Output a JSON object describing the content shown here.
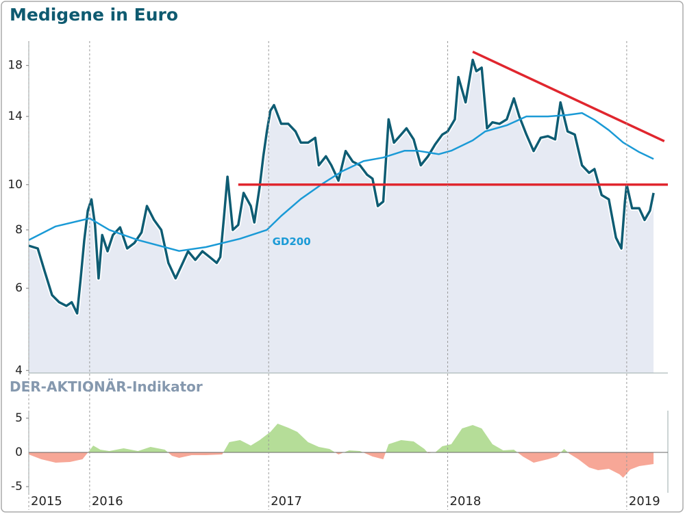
{
  "chart_data": [
    {
      "type": "line",
      "title": "Medigene in Euro",
      "log": true,
      "xlim": [
        2015.66,
        2019.23
      ],
      "ylim": [
        3.95,
        20.3
      ],
      "yticks": [
        4,
        6,
        8,
        10,
        14,
        18
      ],
      "area_color": "#e6eaf3",
      "series": [
        {
          "color": "#0e5c73",
          "x": [
            2015.66,
            2015.71,
            2015.75,
            2015.79,
            2015.83,
            2015.87,
            2015.9,
            2015.93,
            2015.95,
            2015.97,
            2015.99,
            2016.01,
            2016.03,
            2016.05,
            2016.07,
            2016.1,
            2016.13,
            2016.17,
            2016.21,
            2016.25,
            2016.29,
            2016.32,
            2016.36,
            2016.4,
            2016.44,
            2016.48,
            2016.52,
            2016.55,
            2016.59,
            2016.63,
            2016.67,
            2016.71,
            2016.73,
            2016.75,
            2016.77,
            2016.8,
            2016.83,
            2016.86,
            2016.9,
            2016.92,
            2016.95,
            2016.97,
            2016.99,
            2017.01,
            2017.03,
            2017.07,
            2017.11,
            2017.15,
            2017.18,
            2017.22,
            2017.26,
            2017.28,
            2017.32,
            2017.35,
            2017.39,
            2017.43,
            2017.47,
            2017.51,
            2017.55,
            2017.58,
            2017.61,
            2017.64,
            2017.67,
            2017.7,
            2017.74,
            2017.77,
            2017.81,
            2017.85,
            2017.89,
            2017.93,
            2017.97,
            2018.0,
            2018.04,
            2018.06,
            2018.1,
            2018.14,
            2018.16,
            2018.19,
            2018.22,
            2018.25,
            2018.29,
            2018.33,
            2018.37,
            2018.4,
            2018.44,
            2018.48,
            2018.52,
            2018.56,
            2018.6,
            2018.63,
            2018.67,
            2018.71,
            2018.75,
            2018.79,
            2018.82,
            2018.86,
            2018.9,
            2018.94,
            2018.97,
            2018.99,
            2019.0,
            2019.03,
            2019.07,
            2019.1,
            2019.13,
            2019.15
          ],
          "values": [
            7.4,
            7.3,
            6.5,
            5.8,
            5.6,
            5.5,
            5.6,
            5.3,
            6.3,
            7.6,
            8.8,
            9.3,
            8.2,
            6.3,
            7.8,
            7.2,
            7.8,
            8.1,
            7.3,
            7.5,
            7.9,
            9.0,
            8.4,
            8.0,
            6.8,
            6.3,
            6.8,
            7.2,
            6.9,
            7.2,
            7.0,
            6.8,
            7.0,
            8.5,
            10.4,
            8.0,
            8.2,
            9.6,
            9.0,
            8.3,
            9.9,
            11.5,
            13.0,
            14.4,
            14.8,
            13.5,
            13.5,
            13.0,
            12.3,
            12.3,
            12.6,
            11.0,
            11.5,
            11.0,
            10.2,
            11.8,
            11.2,
            11.0,
            10.5,
            10.3,
            9.0,
            9.2,
            13.8,
            12.3,
            12.8,
            13.2,
            12.5,
            11.0,
            11.5,
            12.2,
            12.8,
            13.0,
            13.8,
            17.0,
            15.0,
            18.5,
            17.5,
            17.8,
            13.2,
            13.6,
            13.5,
            13.8,
            15.3,
            14.0,
            12.8,
            11.8,
            12.6,
            12.7,
            12.5,
            15.0,
            13.0,
            12.8,
            11.0,
            10.6,
            10.8,
            9.5,
            9.3,
            7.7,
            7.3,
            9.2,
            10.0,
            8.9,
            8.9,
            8.4,
            8.8,
            9.6
          ]
        },
        {
          "name": "GD200",
          "color": "#1a9ad6",
          "x": [
            2015.66,
            2015.81,
            2016.0,
            2016.11,
            2016.27,
            2016.5,
            2016.65,
            2016.84,
            2016.99,
            2017.07,
            2017.18,
            2017.3,
            2017.41,
            2017.53,
            2017.64,
            2017.76,
            2017.83,
            2017.95,
            2018.02,
            2018.14,
            2018.21,
            2018.33,
            2018.44,
            2018.56,
            2018.67,
            2018.75,
            2018.82,
            2018.9,
            2018.98,
            2019.07,
            2019.15
          ],
          "values": [
            7.61,
            8.14,
            8.47,
            8.0,
            7.61,
            7.21,
            7.35,
            7.66,
            8.0,
            8.57,
            9.32,
            10.04,
            10.68,
            11.23,
            11.43,
            11.82,
            11.82,
            11.62,
            11.82,
            12.44,
            13.0,
            13.4,
            14.0,
            14.0,
            14.1,
            14.24,
            13.76,
            13.08,
            12.31,
            11.74,
            11.35
          ]
        }
      ],
      "lines": [
        {
          "color": "#e0262e",
          "x": [
            2016.83,
            2019.23
          ],
          "values": [
            10,
            10
          ]
        },
        {
          "color": "#e0262e",
          "x": [
            2018.14,
            2019.21
          ],
          "values": [
            19.26,
            12.39
          ]
        }
      ]
    },
    {
      "type": "area",
      "title": "DER-AKTIONÄR-Indikator",
      "xlim": [
        2015.66,
        2019.23
      ],
      "ylim": [
        -5.9,
        6.1
      ],
      "yticks": [
        -5,
        0,
        5
      ],
      "xticks": [
        {
          "value": 2015.66,
          "label": "2015"
        },
        2016,
        2017,
        2018,
        2019
      ],
      "positive_color": "#b5dd98",
      "negative_color": "#f7a797",
      "x": [
        2015.66,
        2015.73,
        2015.81,
        2015.89,
        2015.96,
        2016.0,
        2016.02,
        2016.06,
        2016.11,
        2016.19,
        2016.27,
        2016.34,
        2016.42,
        2016.46,
        2016.5,
        2016.57,
        2016.65,
        2016.74,
        2016.78,
        2016.84,
        2016.9,
        2016.95,
        2017.01,
        2017.05,
        2017.11,
        2017.16,
        2017.22,
        2017.28,
        2017.34,
        2017.39,
        2017.45,
        2017.51,
        2017.58,
        2017.64,
        2017.67,
        2017.74,
        2017.81,
        2017.87,
        2017.89,
        2017.93,
        2017.97,
        2018.02,
        2018.08,
        2018.14,
        2018.19,
        2018.25,
        2018.31,
        2018.37,
        2018.42,
        2018.48,
        2018.56,
        2018.61,
        2018.65,
        2018.68,
        2018.73,
        2018.79,
        2018.84,
        2018.9,
        2018.96,
        2018.98,
        2019.02,
        2019.07,
        2019.15
      ],
      "values": [
        -0.3,
        -1.0,
        -1.5,
        -1.4,
        -1.0,
        0.3,
        1.0,
        0.4,
        0.2,
        0.6,
        0.2,
        0.8,
        0.4,
        -0.5,
        -0.8,
        -0.4,
        -0.4,
        -0.3,
        1.5,
        1.8,
        1.0,
        1.8,
        3.0,
        4.2,
        3.6,
        3.0,
        1.5,
        0.8,
        0.5,
        -0.3,
        0.3,
        0.2,
        -0.6,
        -1.0,
        1.2,
        1.8,
        1.6,
        0.5,
        -0.1,
        0.0,
        0.9,
        1.2,
        3.5,
        4.0,
        3.5,
        1.2,
        0.3,
        0.4,
        -0.6,
        -1.5,
        -1.0,
        -0.6,
        0.5,
        -0.2,
        -1.0,
        -2.2,
        -2.6,
        -2.4,
        -3.2,
        -3.7,
        -2.5,
        -2.0,
        -1.7
      ]
    }
  ]
}
